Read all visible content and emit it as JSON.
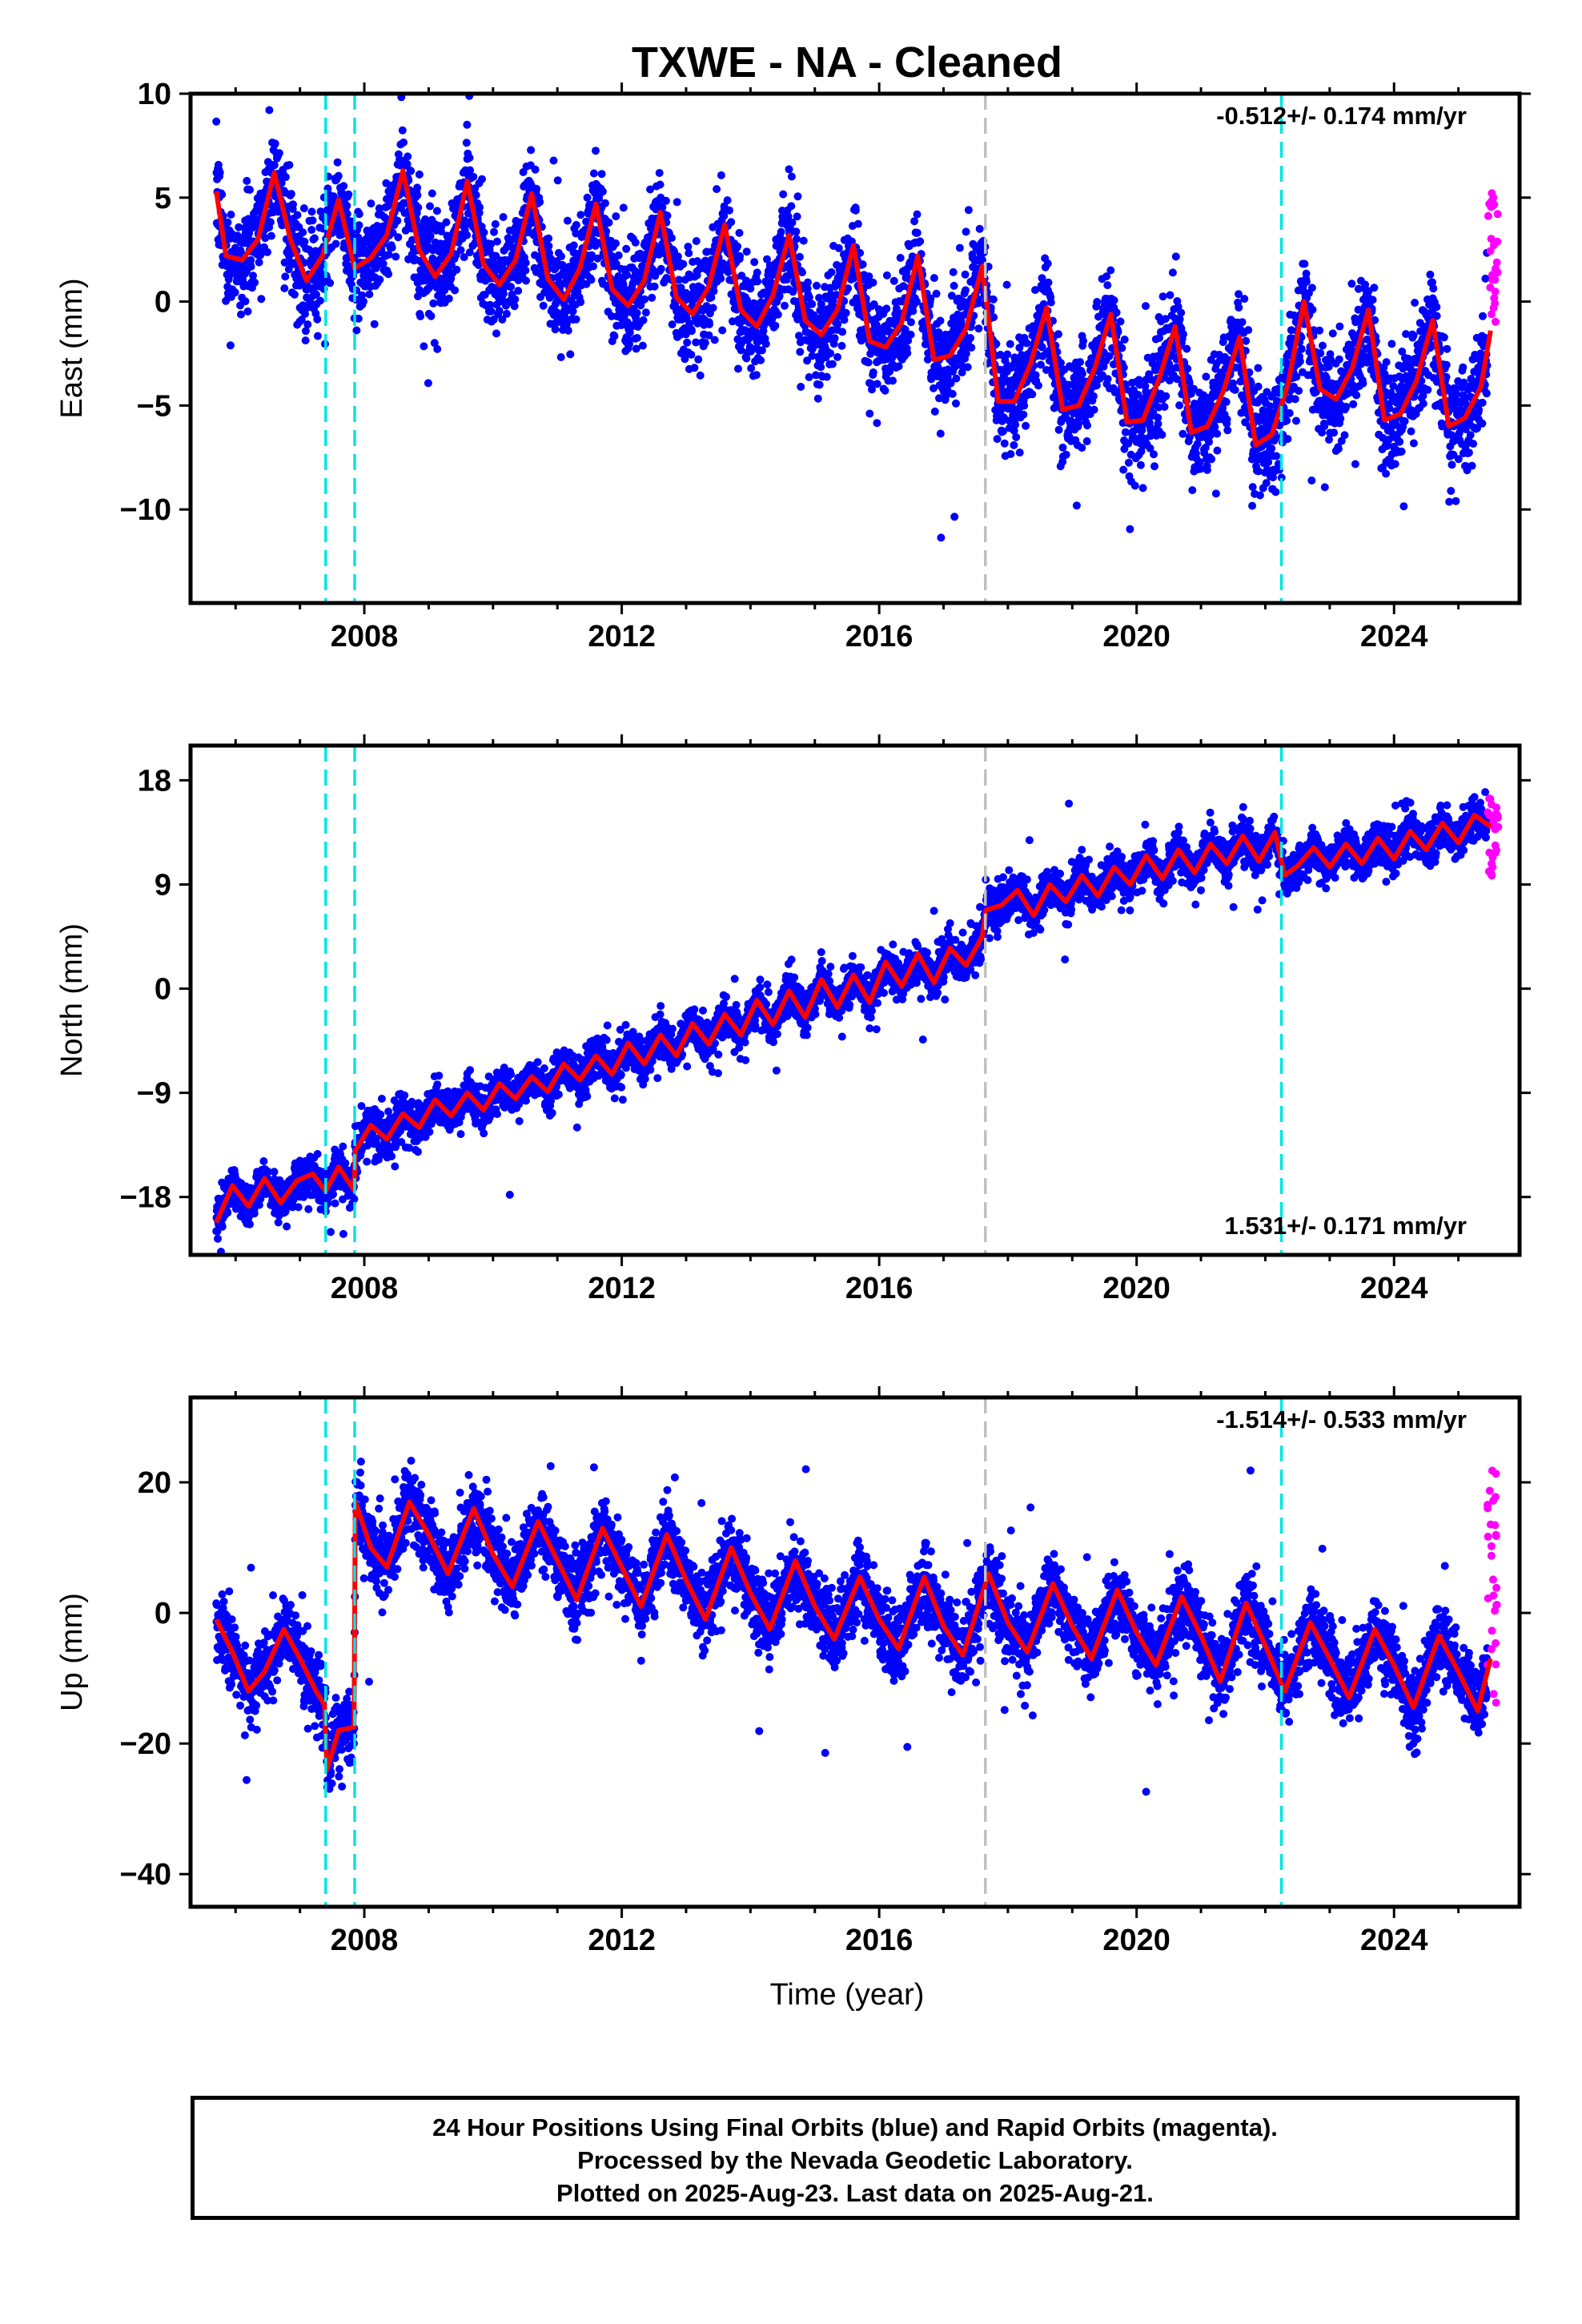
{
  "title": "TXWE  - NA - Cleaned",
  "xlabel": "Time (year)",
  "footer": {
    "line1": "24 Hour Positions Using Final Orbits (blue) and Rapid Orbits (magenta).",
    "line2": "Processed by the Nevada Geodetic Laboratory.",
    "line3": "Plotted on 2025-Aug-23. Last data on 2025-Aug-21."
  },
  "chart_data": [
    {
      "type": "scatter",
      "component": "East",
      "ylabel": "East (mm)",
      "rate_text": "-0.512+/- 0.174 mm/yr",
      "xlim": [
        2005.3,
        2025.95
      ],
      "ylim": [
        -14.5,
        10
      ],
      "yticks": [
        10,
        5,
        0,
        -5,
        -10
      ],
      "xticks": [
        2008,
        2012,
        2016,
        2020,
        2024
      ],
      "offsets": [
        2007.4,
        2007.85,
        2017.65,
        2022.25
      ],
      "offset_colors": [
        "#00e5e5",
        "#00e5e5",
        "#c0c0c0",
        "#00e5e5"
      ],
      "series": [
        {
          "name": "Final Orbits",
          "color": "#0000ff",
          "model": {
            "start": 2005.7,
            "end": 2025.45,
            "intercept": 3.5,
            "rate": -0.512,
            "amplitude": 2.6,
            "phase": 2.2,
            "noise": 2.2
          }
        },
        {
          "name": "Rapid Orbits",
          "color": "#ff00ff",
          "x_range": [
            2025.45,
            2025.62
          ],
          "y_range": [
            -1.0,
            6.3
          ]
        },
        {
          "name": "Model",
          "color": "#ff0000",
          "x": [
            2005.7,
            2005.85,
            2006.1,
            2006.35,
            2006.6,
            2006.85,
            2007.1,
            2007.35,
            2007.6,
            2007.85,
            2008.1,
            2008.35,
            2008.6,
            2008.85,
            2009.1,
            2009.35,
            2009.6,
            2009.85,
            2010.1,
            2010.35,
            2010.6,
            2010.85,
            2011.1,
            2011.35,
            2011.6,
            2011.85,
            2012.1,
            2012.35,
            2012.6,
            2012.85,
            2013.1,
            2013.35,
            2013.6,
            2013.85,
            2014.1,
            2014.35,
            2014.6,
            2014.85,
            2015.1,
            2015.35,
            2015.6,
            2015.85,
            2016.1,
            2016.35,
            2016.6,
            2016.85,
            2017.1,
            2017.35,
            2017.6,
            2017.85,
            2018.1,
            2018.35,
            2018.6,
            2018.85,
            2019.1,
            2019.35,
            2019.6,
            2019.85,
            2020.1,
            2020.35,
            2020.6,
            2020.85,
            2021.1,
            2021.35,
            2021.6,
            2021.85,
            2022.1,
            2022.35,
            2022.6,
            2022.85,
            2023.1,
            2023.35,
            2023.6,
            2023.85,
            2024.1,
            2024.35,
            2024.6,
            2024.85,
            2025.1,
            2025.35,
            2025.5
          ],
          "y": [
            5.3,
            2.2,
            2.0,
            3.0,
            6.2,
            3.0,
            1.0,
            2.2,
            4.9,
            1.6,
            2.1,
            3.2,
            6.3,
            2.5,
            1.2,
            2.3,
            5.8,
            1.8,
            0.8,
            2.0,
            5.2,
            1.1,
            0.1,
            1.6,
            4.7,
            0.6,
            -0.2,
            1.0,
            4.3,
            0.2,
            -0.6,
            0.7,
            3.7,
            -0.4,
            -1.2,
            0.3,
            3.2,
            -0.9,
            -1.6,
            -0.4,
            2.7,
            -1.9,
            -2.2,
            -1.0,
            2.2,
            -2.8,
            -2.6,
            -1.3,
            1.7,
            -4.8,
            -4.8,
            -3.0,
            -0.3,
            -5.2,
            -5.0,
            -3.2,
            -0.6,
            -5.8,
            -5.7,
            -3.7,
            -1.2,
            -6.3,
            -6.0,
            -4.3,
            -1.7,
            -6.9,
            -6.4,
            -4.0,
            0.0,
            -4.2,
            -4.7,
            -3.2,
            -0.4,
            -5.7,
            -5.4,
            -3.8,
            -0.9,
            -6.0,
            -5.6,
            -4.1,
            -1.4
          ]
        }
      ]
    },
    {
      "type": "scatter",
      "component": "North",
      "ylabel": "North (mm)",
      "rate_text": "1.531+/- 0.171 mm/yr",
      "xlim": [
        2005.3,
        2025.95
      ],
      "ylim": [
        -23,
        21
      ],
      "yticks": [
        18,
        9,
        0,
        -9,
        -18
      ],
      "xticks": [
        2008,
        2012,
        2016,
        2020,
        2024
      ],
      "offsets": [
        2007.4,
        2007.85,
        2017.65,
        2022.25
      ],
      "offset_colors": [
        "#00e5e5",
        "#00e5e5",
        "#c0c0c0",
        "#00e5e5"
      ],
      "series": [
        {
          "name": "Final Orbits",
          "color": "#0000ff",
          "model": {
            "start": 2005.7,
            "end": 2025.45,
            "intercept": -19.0,
            "rate": 1.531,
            "amplitude": 0.9,
            "phase": 0.6,
            "noise": 1.6
          }
        },
        {
          "name": "Rapid Orbits",
          "color": "#ff00ff",
          "x_range": [
            2025.45,
            2025.62
          ],
          "y_range": [
            9.5,
            16.5
          ]
        },
        {
          "name": "Model",
          "color": "#ff0000",
          "x": [
            2005.7,
            2005.95,
            2006.2,
            2006.45,
            2006.7,
            2006.95,
            2007.2,
            2007.4,
            2007.6,
            2007.84,
            2007.86,
            2008.1,
            2008.35,
            2008.6,
            2008.85,
            2009.1,
            2009.35,
            2009.6,
            2009.85,
            2010.1,
            2010.35,
            2010.6,
            2010.85,
            2011.1,
            2011.35,
            2011.6,
            2011.85,
            2012.1,
            2012.35,
            2012.6,
            2012.85,
            2013.1,
            2013.35,
            2013.6,
            2013.85,
            2014.1,
            2014.35,
            2014.6,
            2014.85,
            2015.1,
            2015.35,
            2015.6,
            2015.85,
            2016.1,
            2016.35,
            2016.6,
            2016.85,
            2017.1,
            2017.35,
            2017.6,
            2017.66,
            2017.9,
            2018.15,
            2018.4,
            2018.65,
            2018.9,
            2019.15,
            2019.4,
            2019.65,
            2019.9,
            2020.15,
            2020.4,
            2020.65,
            2020.9,
            2021.15,
            2021.4,
            2021.65,
            2021.9,
            2022.15,
            2022.24,
            2022.3,
            2022.5,
            2022.75,
            2023.0,
            2023.25,
            2023.5,
            2023.75,
            2024.0,
            2024.25,
            2024.5,
            2024.75,
            2025.0,
            2025.25,
            2025.5
          ],
          "y": [
            -20.2,
            -17.0,
            -18.8,
            -16.4,
            -18.5,
            -16.6,
            -16.0,
            -17.5,
            -15.4,
            -17.4,
            -14.0,
            -11.8,
            -13.0,
            -10.8,
            -12.0,
            -9.6,
            -11.0,
            -9.0,
            -10.5,
            -8.2,
            -9.5,
            -7.6,
            -8.9,
            -6.5,
            -7.9,
            -5.8,
            -7.4,
            -4.7,
            -6.5,
            -4.0,
            -5.8,
            -3.0,
            -4.8,
            -2.2,
            -4.0,
            -1.0,
            -3.1,
            -0.2,
            -2.5,
            0.8,
            -1.6,
            1.2,
            -1.2,
            2.3,
            0.2,
            3.0,
            0.5,
            3.5,
            2.0,
            4.5,
            6.8,
            7.2,
            8.5,
            6.3,
            9.0,
            7.5,
            9.8,
            8.0,
            10.5,
            9.0,
            11.5,
            9.5,
            12.0,
            10.0,
            12.5,
            10.8,
            13.2,
            11.0,
            13.5,
            11.2,
            9.8,
            10.6,
            12.2,
            10.5,
            12.5,
            10.8,
            13.0,
            11.2,
            13.6,
            12.0,
            14.3,
            12.6,
            15.0,
            14.0
          ]
        }
      ]
    },
    {
      "type": "scatter",
      "component": "Up",
      "ylabel": "Up (mm)",
      "rate_text": "-1.514+/- 0.533 mm/yr",
      "xlim": [
        2005.3,
        2025.95
      ],
      "ylim": [
        -45,
        33
      ],
      "yticks": [
        20,
        0,
        -20,
        -40
      ],
      "xticks": [
        2008,
        2012,
        2016,
        2020,
        2024
      ],
      "offsets": [
        2007.4,
        2007.85,
        2017.65,
        2022.25
      ],
      "offset_colors": [
        "#00e5e5",
        "#00e5e5",
        "#c0c0c0",
        "#00e5e5"
      ],
      "series": [
        {
          "name": "Final Orbits",
          "color": "#0000ff",
          "model": {
            "start": 2005.7,
            "end": 2025.45,
            "intercept": 14.0,
            "rate": -1.514,
            "amplitude": 6.0,
            "phase": 2.4,
            "noise": 5.0
          }
        },
        {
          "name": "Rapid Orbits",
          "color": "#ff00ff",
          "x_range": [
            2025.45,
            2025.62
          ],
          "y_range": [
            -15.0,
            22.0
          ]
        },
        {
          "name": "Model",
          "color": "#ff0000",
          "x": [
            2005.7,
            2005.95,
            2006.2,
            2006.45,
            2006.75,
            2007.0,
            2007.25,
            2007.38,
            2007.42,
            2007.6,
            2007.84,
            2007.86,
            2008.1,
            2008.35,
            2008.7,
            2009.0,
            2009.3,
            2009.7,
            2010.0,
            2010.3,
            2010.7,
            2011.0,
            2011.3,
            2011.7,
            2012.0,
            2012.3,
            2012.7,
            2013.0,
            2013.3,
            2013.7,
            2014.0,
            2014.3,
            2014.7,
            2015.0,
            2015.3,
            2015.7,
            2016.0,
            2016.3,
            2016.7,
            2017.0,
            2017.3,
            2017.7,
            2018.0,
            2018.3,
            2018.7,
            2019.0,
            2019.3,
            2019.7,
            2020.0,
            2020.3,
            2020.7,
            2021.0,
            2021.3,
            2021.7,
            2022.0,
            2022.3,
            2022.7,
            2023.0,
            2023.3,
            2023.7,
            2024.0,
            2024.3,
            2024.7,
            2025.0,
            2025.3,
            2025.5
          ],
          "y": [
            -1.0,
            -6.0,
            -12.0,
            -9.0,
            -2.5,
            -7.0,
            -12.0,
            -14.0,
            -24.0,
            -18.0,
            -17.5,
            17.0,
            10.0,
            7.0,
            17.0,
            12.0,
            6.0,
            16.0,
            9.0,
            4.0,
            14.0,
            8.0,
            2.0,
            13.0,
            7.0,
            1.0,
            12.0,
            5.0,
            -1.0,
            10.0,
            3.0,
            -2.5,
            8.0,
            1.0,
            -4.0,
            5.5,
            -1.0,
            -5.5,
            5.5,
            -2.0,
            -6.5,
            6.0,
            -1.5,
            -6.0,
            4.5,
            -2.0,
            -7.0,
            3.5,
            -3.0,
            -8.0,
            2.5,
            -3.5,
            -10.5,
            1.5,
            -5.0,
            -12.0,
            -1.5,
            -7.0,
            -13.0,
            -2.5,
            -8.0,
            -14.5,
            -3.5,
            -9.0,
            -15.0,
            -7.0
          ]
        }
      ]
    }
  ]
}
